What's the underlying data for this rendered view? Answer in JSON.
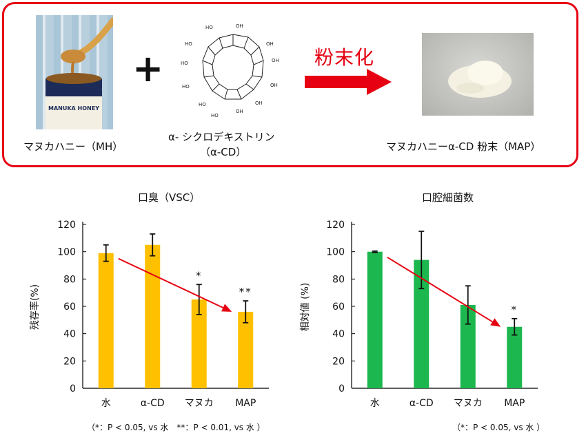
{
  "top_panel": {
    "honey_label": "マヌカハニー（MH）",
    "plus": "+",
    "cd_label_line1": "α- シクロデキストリン",
    "cd_label_line2": "（α-CD）",
    "arrow_label": "粉末化",
    "powder_label": "マヌカハニーα-CD 粉末（MAP）",
    "jar_text": "MANUKA HONEY",
    "oh_label": "OH",
    "ho_label": "HO"
  },
  "colors": {
    "frame": "#e60012",
    "bar_left": "#ffc000",
    "bar_right": "#1cb74e",
    "trend_arrow": "#e60012"
  },
  "chart_data": [
    {
      "type": "bar",
      "title": "口臭（VSC）",
      "ylabel": "残存率(%)",
      "xlabel": "",
      "categories": [
        "水",
        "α-CD",
        "マヌカ",
        "MAP"
      ],
      "values": [
        99,
        105,
        65,
        56
      ],
      "errors": [
        6,
        8,
        11,
        8
      ],
      "significance": [
        "",
        "",
        "*",
        "**"
      ],
      "ylim": [
        0,
        120
      ],
      "yticks": [
        "0",
        "20",
        "40",
        "60",
        "80",
        "100",
        "120"
      ],
      "trend_arrow": {
        "from_index": 0,
        "to_index": 3
      },
      "footnote": "（*：P < 0.05, vs 水　**：P < 0.01, vs 水 ）"
    },
    {
      "type": "bar",
      "title": "口腔細菌数",
      "ylabel": "相対値 (%)",
      "xlabel": "",
      "categories": [
        "水",
        "α-CD",
        "マヌカ",
        "MAP"
      ],
      "values": [
        100,
        94,
        61,
        45
      ],
      "errors": [
        0.5,
        21,
        14,
        6
      ],
      "significance": [
        "",
        "",
        "",
        "*"
      ],
      "ylim": [
        0,
        120
      ],
      "yticks": [
        "0",
        "20",
        "40",
        "60",
        "80",
        "100",
        "120"
      ],
      "trend_arrow": {
        "from_index": 0,
        "to_index": 3
      },
      "footnote": "（*：P < 0.05, vs 水 ）"
    }
  ]
}
